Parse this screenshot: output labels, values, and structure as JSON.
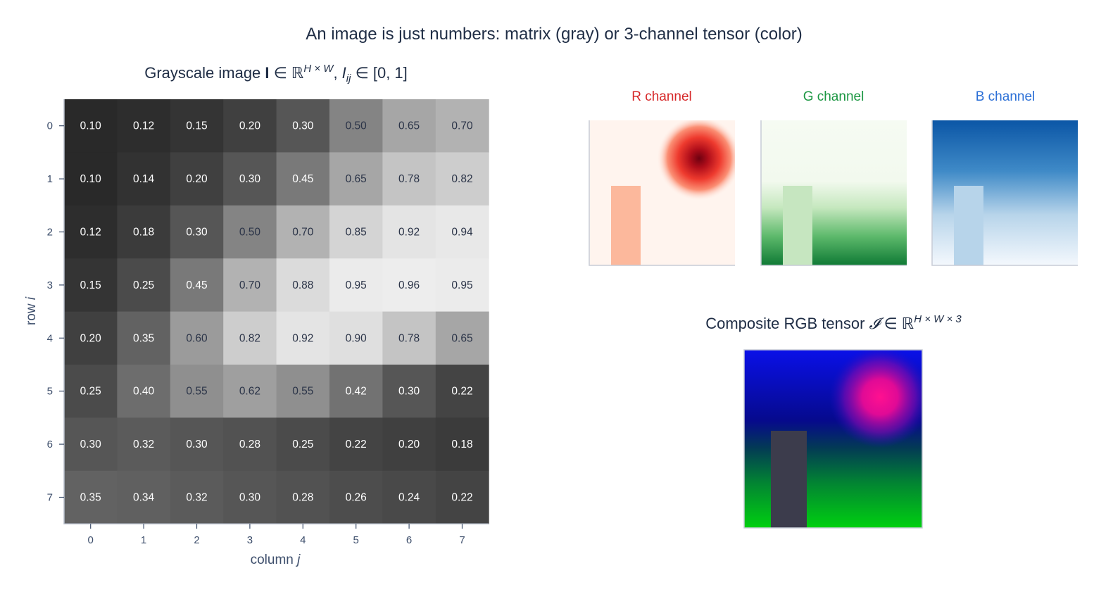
{
  "title": "An image is just numbers: matrix (gray) or 3-channel tensor (color)",
  "grayscale_title": {
    "prefix": "Grayscale image ",
    "bold_symbol": "I",
    "set": " ∈ ℝ",
    "sup": "H × W",
    "mid": ", ",
    "elem": "I",
    "elem_sub": "ij",
    "range": " ∈ [0, 1]"
  },
  "composite_title": {
    "prefix": "Composite RGB tensor ",
    "symbol": "𝓘",
    "set": " ∈ ℝ",
    "sup": "H × W × 3"
  },
  "channels": [
    {
      "label": "R channel",
      "color": "#d62728"
    },
    {
      "label": "G channel",
      "color": "#1a9641"
    },
    {
      "label": "B channel",
      "color": "#2b6fd6"
    }
  ],
  "chart_data": {
    "type": "heatmap",
    "xlabel": {
      "text": "column ",
      "var": "j"
    },
    "ylabel": {
      "text": "row ",
      "var": "i"
    },
    "x_ticks": [
      "0",
      "1",
      "2",
      "3",
      "4",
      "5",
      "6",
      "7"
    ],
    "y_ticks": [
      "0",
      "1",
      "2",
      "3",
      "4",
      "5",
      "6",
      "7"
    ],
    "value_range": [
      0,
      1
    ],
    "colormap": "gray",
    "values": [
      [
        0.1,
        0.12,
        0.15,
        0.2,
        0.3,
        0.5,
        0.65,
        0.7
      ],
      [
        0.1,
        0.14,
        0.2,
        0.3,
        0.45,
        0.65,
        0.78,
        0.82
      ],
      [
        0.12,
        0.18,
        0.3,
        0.5,
        0.7,
        0.85,
        0.92,
        0.94
      ],
      [
        0.15,
        0.25,
        0.45,
        0.7,
        0.88,
        0.95,
        0.96,
        0.95
      ],
      [
        0.2,
        0.35,
        0.6,
        0.82,
        0.92,
        0.9,
        0.78,
        0.65
      ],
      [
        0.25,
        0.4,
        0.55,
        0.62,
        0.55,
        0.42,
        0.3,
        0.22
      ],
      [
        0.3,
        0.32,
        0.3,
        0.28,
        0.25,
        0.22,
        0.2,
        0.18
      ],
      [
        0.35,
        0.34,
        0.32,
        0.3,
        0.28,
        0.26,
        0.24,
        0.22
      ]
    ]
  }
}
